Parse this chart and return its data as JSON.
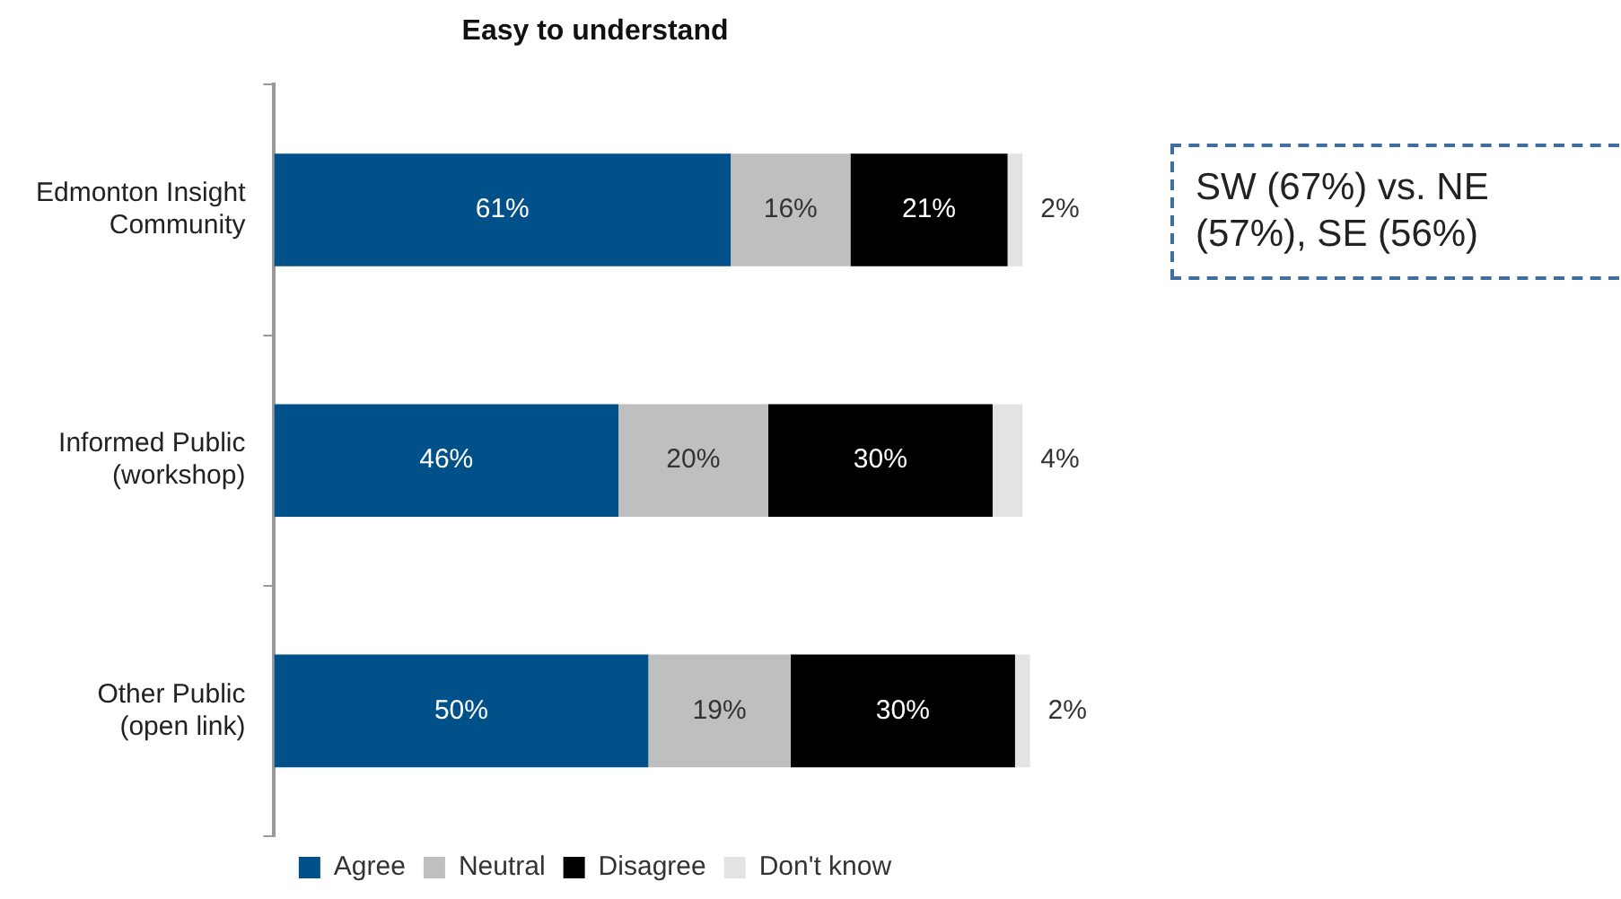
{
  "chart_data": {
    "type": "bar",
    "orientation": "horizontal",
    "stacked": true,
    "title": "Easy to understand",
    "categories": [
      "Edmonton Insight Community",
      "Informed Public (workshop)",
      "Other Public (open link)"
    ],
    "series": [
      {
        "name": "Agree",
        "color": "#00508a",
        "values": [
          61,
          46,
          50
        ],
        "value_labels": [
          "61%",
          "46%",
          "50%"
        ]
      },
      {
        "name": "Neutral",
        "color": "#bfbfbf",
        "values": [
          16,
          20,
          19
        ],
        "value_labels": [
          "16%",
          "20%",
          "19%"
        ]
      },
      {
        "name": "Disagree",
        "color": "#000000",
        "values": [
          21,
          30,
          30
        ],
        "value_labels": [
          "21%",
          "30%",
          "30%"
        ]
      },
      {
        "name": "Don't know",
        "color": "#e3e3e3",
        "values": [
          2,
          4,
          2
        ],
        "value_labels": [
          "2%",
          "4%",
          "2%"
        ]
      }
    ],
    "legend": "bottom",
    "grid": false,
    "annotations": [
      "SW (67%) vs. NE (57%), SE (56%)"
    ]
  }
}
